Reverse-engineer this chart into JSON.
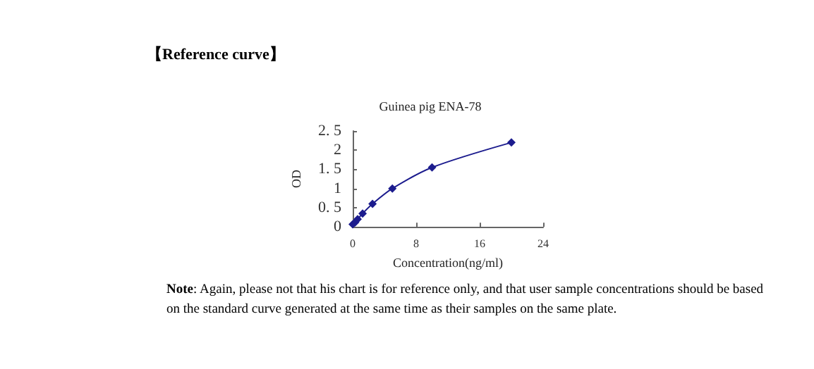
{
  "chart_data": {
    "type": "line",
    "title": "Guinea pig ENA-78",
    "xlabel": "Concentration(ng/ml)",
    "ylabel": "OD",
    "annotations": [
      "【Reference curve】",
      "Note: Again, please not that his chart is for reference only, and that user sample concentrations should be based on the standard curve generated at the same time as their samples on the same plate."
    ],
    "x": [
      0,
      0.3125,
      0.625,
      1.25,
      2.5,
      5,
      10,
      20
    ],
    "series": [
      {
        "color": "#1c1c8e",
        "values": [
          0.07,
          0.12,
          0.2,
          0.35,
          0.6,
          1.0,
          1.55,
          2.2
        ]
      }
    ],
    "xlim": [
      0,
      24
    ],
    "xticks": [
      0,
      8,
      16,
      24
    ],
    "ylim": [
      0,
      2.5
    ],
    "yticks": [
      0,
      {
        "value": 0.5,
        "label": "0. 5"
      },
      1,
      {
        "value": 1.5,
        "label": "1. 5"
      },
      2,
      {
        "value": 2.5,
        "label": "2. 5"
      }
    ],
    "grid": false,
    "marker": "diamond",
    "line_style": "solid"
  }
}
